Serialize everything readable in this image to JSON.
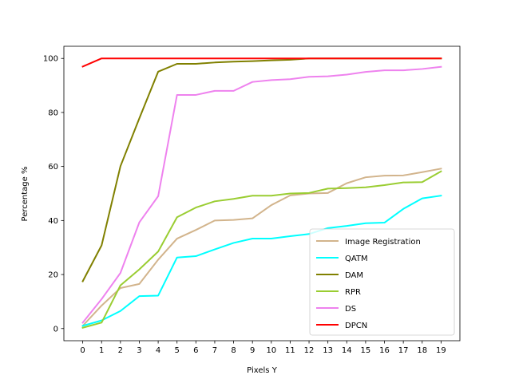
{
  "chart_data": {
    "type": "line",
    "xlabel": "Pixels Y",
    "ylabel": "Percentage %",
    "x": [
      0,
      1,
      2,
      3,
      4,
      5,
      6,
      7,
      8,
      9,
      10,
      11,
      12,
      13,
      14,
      15,
      16,
      17,
      18,
      19
    ],
    "xlim": [
      -1,
      20
    ],
    "ylim": [
      -4.5,
      104.5
    ],
    "yticks": [
      0,
      20,
      40,
      60,
      80,
      100
    ],
    "grid": false,
    "legend_position": "lower-right",
    "series": [
      {
        "name": "Image Registration",
        "color": "#d2b48c",
        "values": [
          1,
          8.5,
          15,
          16.5,
          25.5,
          33.3,
          36.5,
          40,
          40.2,
          40.8,
          45.7,
          49.3,
          50,
          50.2,
          53.8,
          56,
          56.6,
          56.7,
          57.9,
          59.2
        ]
      },
      {
        "name": "QATM",
        "color": "#00ffff",
        "values": [
          1,
          3,
          6.5,
          12,
          12.2,
          26.3,
          26.8,
          29.3,
          31.7,
          33.3,
          33.3,
          34.2,
          35,
          37.2,
          38,
          39,
          39.2,
          44.3,
          48.2,
          49.2
        ]
      },
      {
        "name": "DAM",
        "color": "#808000",
        "values": [
          17.5,
          30.8,
          60.1,
          77.8,
          95.1,
          98,
          98,
          98.5,
          98.8,
          99,
          99.3,
          99.5,
          100,
          100,
          100,
          100,
          100,
          100,
          100,
          100
        ]
      },
      {
        "name": "RPR",
        "color": "#9acd32",
        "values": [
          0.3,
          2.2,
          16,
          21.9,
          28.5,
          41.2,
          44.8,
          47.1,
          48,
          49.2,
          49.2,
          50,
          50.2,
          51.8,
          52,
          52.3,
          53.1,
          54.1,
          54.2,
          58.2
        ]
      },
      {
        "name": "DS",
        "color": "#ee82ee",
        "values": [
          2.2,
          10.9,
          20.6,
          39.3,
          49,
          86.5,
          86.5,
          88,
          88,
          91.3,
          92,
          92.3,
          93.2,
          93.4,
          94,
          95,
          95.6,
          95.6,
          96.1,
          96.9
        ]
      },
      {
        "name": "DPCN",
        "color": "#ff0000",
        "values": [
          97,
          100,
          100,
          100,
          100,
          100,
          100,
          100,
          100,
          100,
          100,
          100,
          100,
          100,
          100,
          100,
          100,
          100,
          100,
          100
        ]
      }
    ]
  }
}
